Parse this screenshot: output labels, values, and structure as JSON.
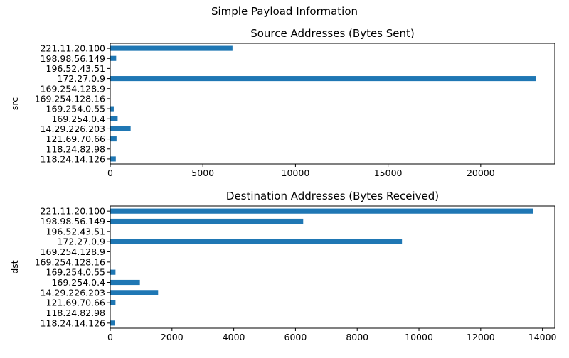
{
  "figure": {
    "suptitle": "Simple Payload Information"
  },
  "chart_data": [
    {
      "type": "bar",
      "orientation": "horizontal",
      "title": "Source Addresses (Bytes Sent)",
      "xlabel": "",
      "ylabel": "src",
      "categories": [
        "118.24.14.126",
        "118.24.82.98",
        "121.69.70.66",
        "14.29.226.203",
        "169.254.0.4",
        "169.254.0.55",
        "169.254.128.16",
        "169.254.128.9",
        "172.27.0.9",
        "196.52.43.51",
        "198.98.56.149",
        "221.11.20.100"
      ],
      "values": [
        300,
        0,
        340,
        1100,
        400,
        190,
        0,
        0,
        23000,
        0,
        320,
        6600
      ],
      "xlim": [
        0,
        24000
      ],
      "xticks": [
        0,
        5000,
        10000,
        15000,
        20000
      ],
      "bar_color": "#1f77b4",
      "grid": false,
      "legend": "none"
    },
    {
      "type": "bar",
      "orientation": "horizontal",
      "title": "Destination Addresses (Bytes Received)",
      "xlabel": "",
      "ylabel": "dst",
      "categories": [
        "118.24.14.126",
        "118.24.82.98",
        "121.69.70.66",
        "14.29.226.203",
        "169.254.0.4",
        "169.254.0.55",
        "169.254.128.16",
        "169.254.128.9",
        "172.27.0.9",
        "196.52.43.51",
        "198.98.56.149",
        "221.11.20.100"
      ],
      "values": [
        160,
        0,
        170,
        1550,
        960,
        170,
        0,
        0,
        9450,
        0,
        6250,
        13700
      ],
      "xlim": [
        0,
        14400
      ],
      "xticks": [
        0,
        2000,
        4000,
        6000,
        8000,
        10000,
        12000,
        14000
      ],
      "bar_color": "#1f77b4",
      "grid": false,
      "legend": "none"
    }
  ]
}
